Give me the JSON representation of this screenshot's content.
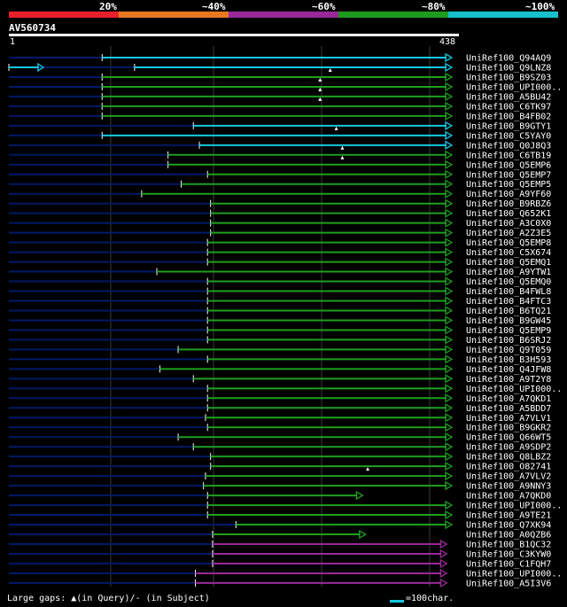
{
  "scale": {
    "ticks": [
      "20%",
      "~40%",
      "~60%",
      "~80%",
      "~100%"
    ],
    "segment_colors": [
      "#e8202c",
      "#e87820",
      "#9a289a",
      "#1e9a1e",
      "#16c0cc"
    ]
  },
  "query": {
    "id": "AV560734",
    "start_label": "1",
    "end_label": "438"
  },
  "colors": {
    "cyan": "#16c8e0",
    "green": "#1ea01e",
    "magenta": "#9a289a",
    "navy": "#001a66",
    "grid": "#3a3a3a"
  },
  "footer": {
    "gaps_legend": "Large gaps: ▲(in Query)/- (in Subject)",
    "scale_legend": "=100char."
  },
  "chart_data": {
    "type": "alignment",
    "query_length": 438,
    "hits": [
      {
        "name": "UniRef100_Q94AQ9",
        "start": 93,
        "end": 438,
        "color": "cyan",
        "marker": null
      },
      {
        "name": "UniRef100_Q9LNZ8",
        "start": 125,
        "end": 438,
        "color": "cyan",
        "marker": null,
        "extra_start": 1,
        "extra_end": 35
      },
      {
        "name": "UniRef100_B9SZ03",
        "start": 93,
        "end": 438,
        "color": "green",
        "marker": 318
      },
      {
        "name": "UniRef100_UPI000..",
        "start": 93,
        "end": 438,
        "color": "green",
        "marker": 308
      },
      {
        "name": "UniRef100_A5BU42",
        "start": 93,
        "end": 438,
        "color": "green",
        "marker": 308
      },
      {
        "name": "UniRef100_C6TK97",
        "start": 93,
        "end": 438,
        "color": "green",
        "marker": 308
      },
      {
        "name": "UniRef100_B4FB02",
        "start": 93,
        "end": 438,
        "color": "green",
        "marker": null
      },
      {
        "name": "UniRef100_B9GTY1",
        "start": 183,
        "end": 438,
        "color": "cyan",
        "marker": null
      },
      {
        "name": "UniRef100_C5YAY0",
        "start": 93,
        "end": 438,
        "color": "cyan",
        "marker": 324
      },
      {
        "name": "UniRef100_Q0J8Q3",
        "start": 189,
        "end": 438,
        "color": "cyan",
        "marker": null
      },
      {
        "name": "UniRef100_C6TB19",
        "start": 158,
        "end": 438,
        "color": "green",
        "marker": 330
      },
      {
        "name": "UniRef100_Q5EMP6",
        "start": 158,
        "end": 438,
        "color": "green",
        "marker": 330
      },
      {
        "name": "UniRef100_Q5EMP7",
        "start": 197,
        "end": 438,
        "color": "green",
        "marker": null
      },
      {
        "name": "UniRef100_Q5EMP5",
        "start": 171,
        "end": 438,
        "color": "green",
        "marker": null
      },
      {
        "name": "UniRef100_A9YF60",
        "start": 132,
        "end": 438,
        "color": "green",
        "marker": null
      },
      {
        "name": "UniRef100_B9RBZ6",
        "start": 200,
        "end": 438,
        "color": "green",
        "marker": null
      },
      {
        "name": "UniRef100_Q652K1",
        "start": 200,
        "end": 438,
        "color": "green",
        "marker": null
      },
      {
        "name": "UniRef100_A3C0X0",
        "start": 200,
        "end": 438,
        "color": "green",
        "marker": null
      },
      {
        "name": "UniRef100_A2Z3E5",
        "start": 200,
        "end": 438,
        "color": "green",
        "marker": null
      },
      {
        "name": "UniRef100_Q5EMP8",
        "start": 197,
        "end": 438,
        "color": "green",
        "marker": null
      },
      {
        "name": "UniRef100_C5X674",
        "start": 197,
        "end": 438,
        "color": "green",
        "marker": null
      },
      {
        "name": "UniRef100_Q5EMQ1",
        "start": 197,
        "end": 438,
        "color": "green",
        "marker": null
      },
      {
        "name": "UniRef100_A9YTW1",
        "start": 147,
        "end": 438,
        "color": "green",
        "marker": null
      },
      {
        "name": "UniRef100_Q5EMQ0",
        "start": 197,
        "end": 438,
        "color": "green",
        "marker": null
      },
      {
        "name": "UniRef100_B4FWL8",
        "start": 197,
        "end": 438,
        "color": "green",
        "marker": null
      },
      {
        "name": "UniRef100_B4FTC3",
        "start": 197,
        "end": 438,
        "color": "green",
        "marker": null
      },
      {
        "name": "UniRef100_B6TQ21",
        "start": 197,
        "end": 438,
        "color": "green",
        "marker": null
      },
      {
        "name": "UniRef100_B9GW45",
        "start": 197,
        "end": 438,
        "color": "green",
        "marker": null
      },
      {
        "name": "UniRef100_Q5EMP9",
        "start": 197,
        "end": 438,
        "color": "green",
        "marker": null
      },
      {
        "name": "UniRef100_B6SRJ2",
        "start": 197,
        "end": 438,
        "color": "green",
        "marker": null
      },
      {
        "name": "UniRef100_Q9T059",
        "start": 168,
        "end": 438,
        "color": "green",
        "marker": null
      },
      {
        "name": "UniRef100_B3H593",
        "start": 197,
        "end": 438,
        "color": "green",
        "marker": null
      },
      {
        "name": "UniRef100_Q4JFW8",
        "start": 150,
        "end": 438,
        "color": "green",
        "marker": null
      },
      {
        "name": "UniRef100_A9T2Y8",
        "start": 183,
        "end": 438,
        "color": "green",
        "marker": null
      },
      {
        "name": "UniRef100_UPI000..",
        "start": 197,
        "end": 438,
        "color": "green",
        "marker": null
      },
      {
        "name": "UniRef100_A7QKD1",
        "start": 197,
        "end": 438,
        "color": "green",
        "marker": null
      },
      {
        "name": "UniRef100_A5BDD7",
        "start": 197,
        "end": 438,
        "color": "green",
        "marker": null
      },
      {
        "name": "UniRef100_A7VLV1",
        "start": 195,
        "end": 438,
        "color": "green",
        "marker": null
      },
      {
        "name": "UniRef100_B9GKR2",
        "start": 197,
        "end": 438,
        "color": "green",
        "marker": null
      },
      {
        "name": "UniRef100_Q66WT5",
        "start": 168,
        "end": 438,
        "color": "green",
        "marker": null
      },
      {
        "name": "UniRef100_A9SDP2",
        "start": 183,
        "end": 438,
        "color": "green",
        "marker": null
      },
      {
        "name": "UniRef100_Q8LBZ2",
        "start": 200,
        "end": 438,
        "color": "green",
        "marker": null
      },
      {
        "name": "UniRef100_O82741",
        "start": 200,
        "end": 438,
        "color": "green",
        "marker": null
      },
      {
        "name": "UniRef100_A7VLV2",
        "start": 195,
        "end": 438,
        "color": "green",
        "marker": 355
      },
      {
        "name": "UniRef100_A9NNY3",
        "start": 193,
        "end": 438,
        "color": "green",
        "marker": null
      },
      {
        "name": "UniRef100_A7QKD0",
        "start": 197,
        "end": 350,
        "color": "green",
        "marker": null
      },
      {
        "name": "UniRef100_UPI000..",
        "start": 197,
        "end": 438,
        "color": "green",
        "marker": null
      },
      {
        "name": "UniRef100_A9TE21",
        "start": 197,
        "end": 438,
        "color": "green",
        "marker": null
      },
      {
        "name": "UniRef100_Q7XK94",
        "start": 225,
        "end": 438,
        "color": "green",
        "marker": null
      },
      {
        "name": "UniRef100_A0QZB6",
        "start": 202,
        "end": 353,
        "color": "green",
        "marker": null
      },
      {
        "name": "UniRef100_B1QC32",
        "start": 202,
        "end": 433,
        "color": "magenta",
        "marker": null
      },
      {
        "name": "UniRef100_C3KYW0",
        "start": 202,
        "end": 433,
        "color": "magenta",
        "marker": null
      },
      {
        "name": "UniRef100_C1FQH7",
        "start": 202,
        "end": 433,
        "color": "magenta",
        "marker": null
      },
      {
        "name": "UniRef100_UPI000..",
        "start": 185,
        "end": 433,
        "color": "magenta",
        "marker": null
      },
      {
        "name": "UniRef100_A5I3V6",
        "start": 185,
        "end": 433,
        "color": "magenta",
        "marker": null
      }
    ]
  }
}
